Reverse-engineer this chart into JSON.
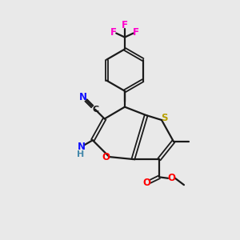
{
  "background_color": "#e9e9e9",
  "bond_color": "#1a1a1a",
  "atom_colors": {
    "N": "#1010ff",
    "S": "#b8a000",
    "O": "#ff0000",
    "F": "#ff00cc",
    "C": "#1a1a1a",
    "H": "#4488aa"
  },
  "figsize": [
    3.0,
    3.0
  ],
  "dpi": 100
}
